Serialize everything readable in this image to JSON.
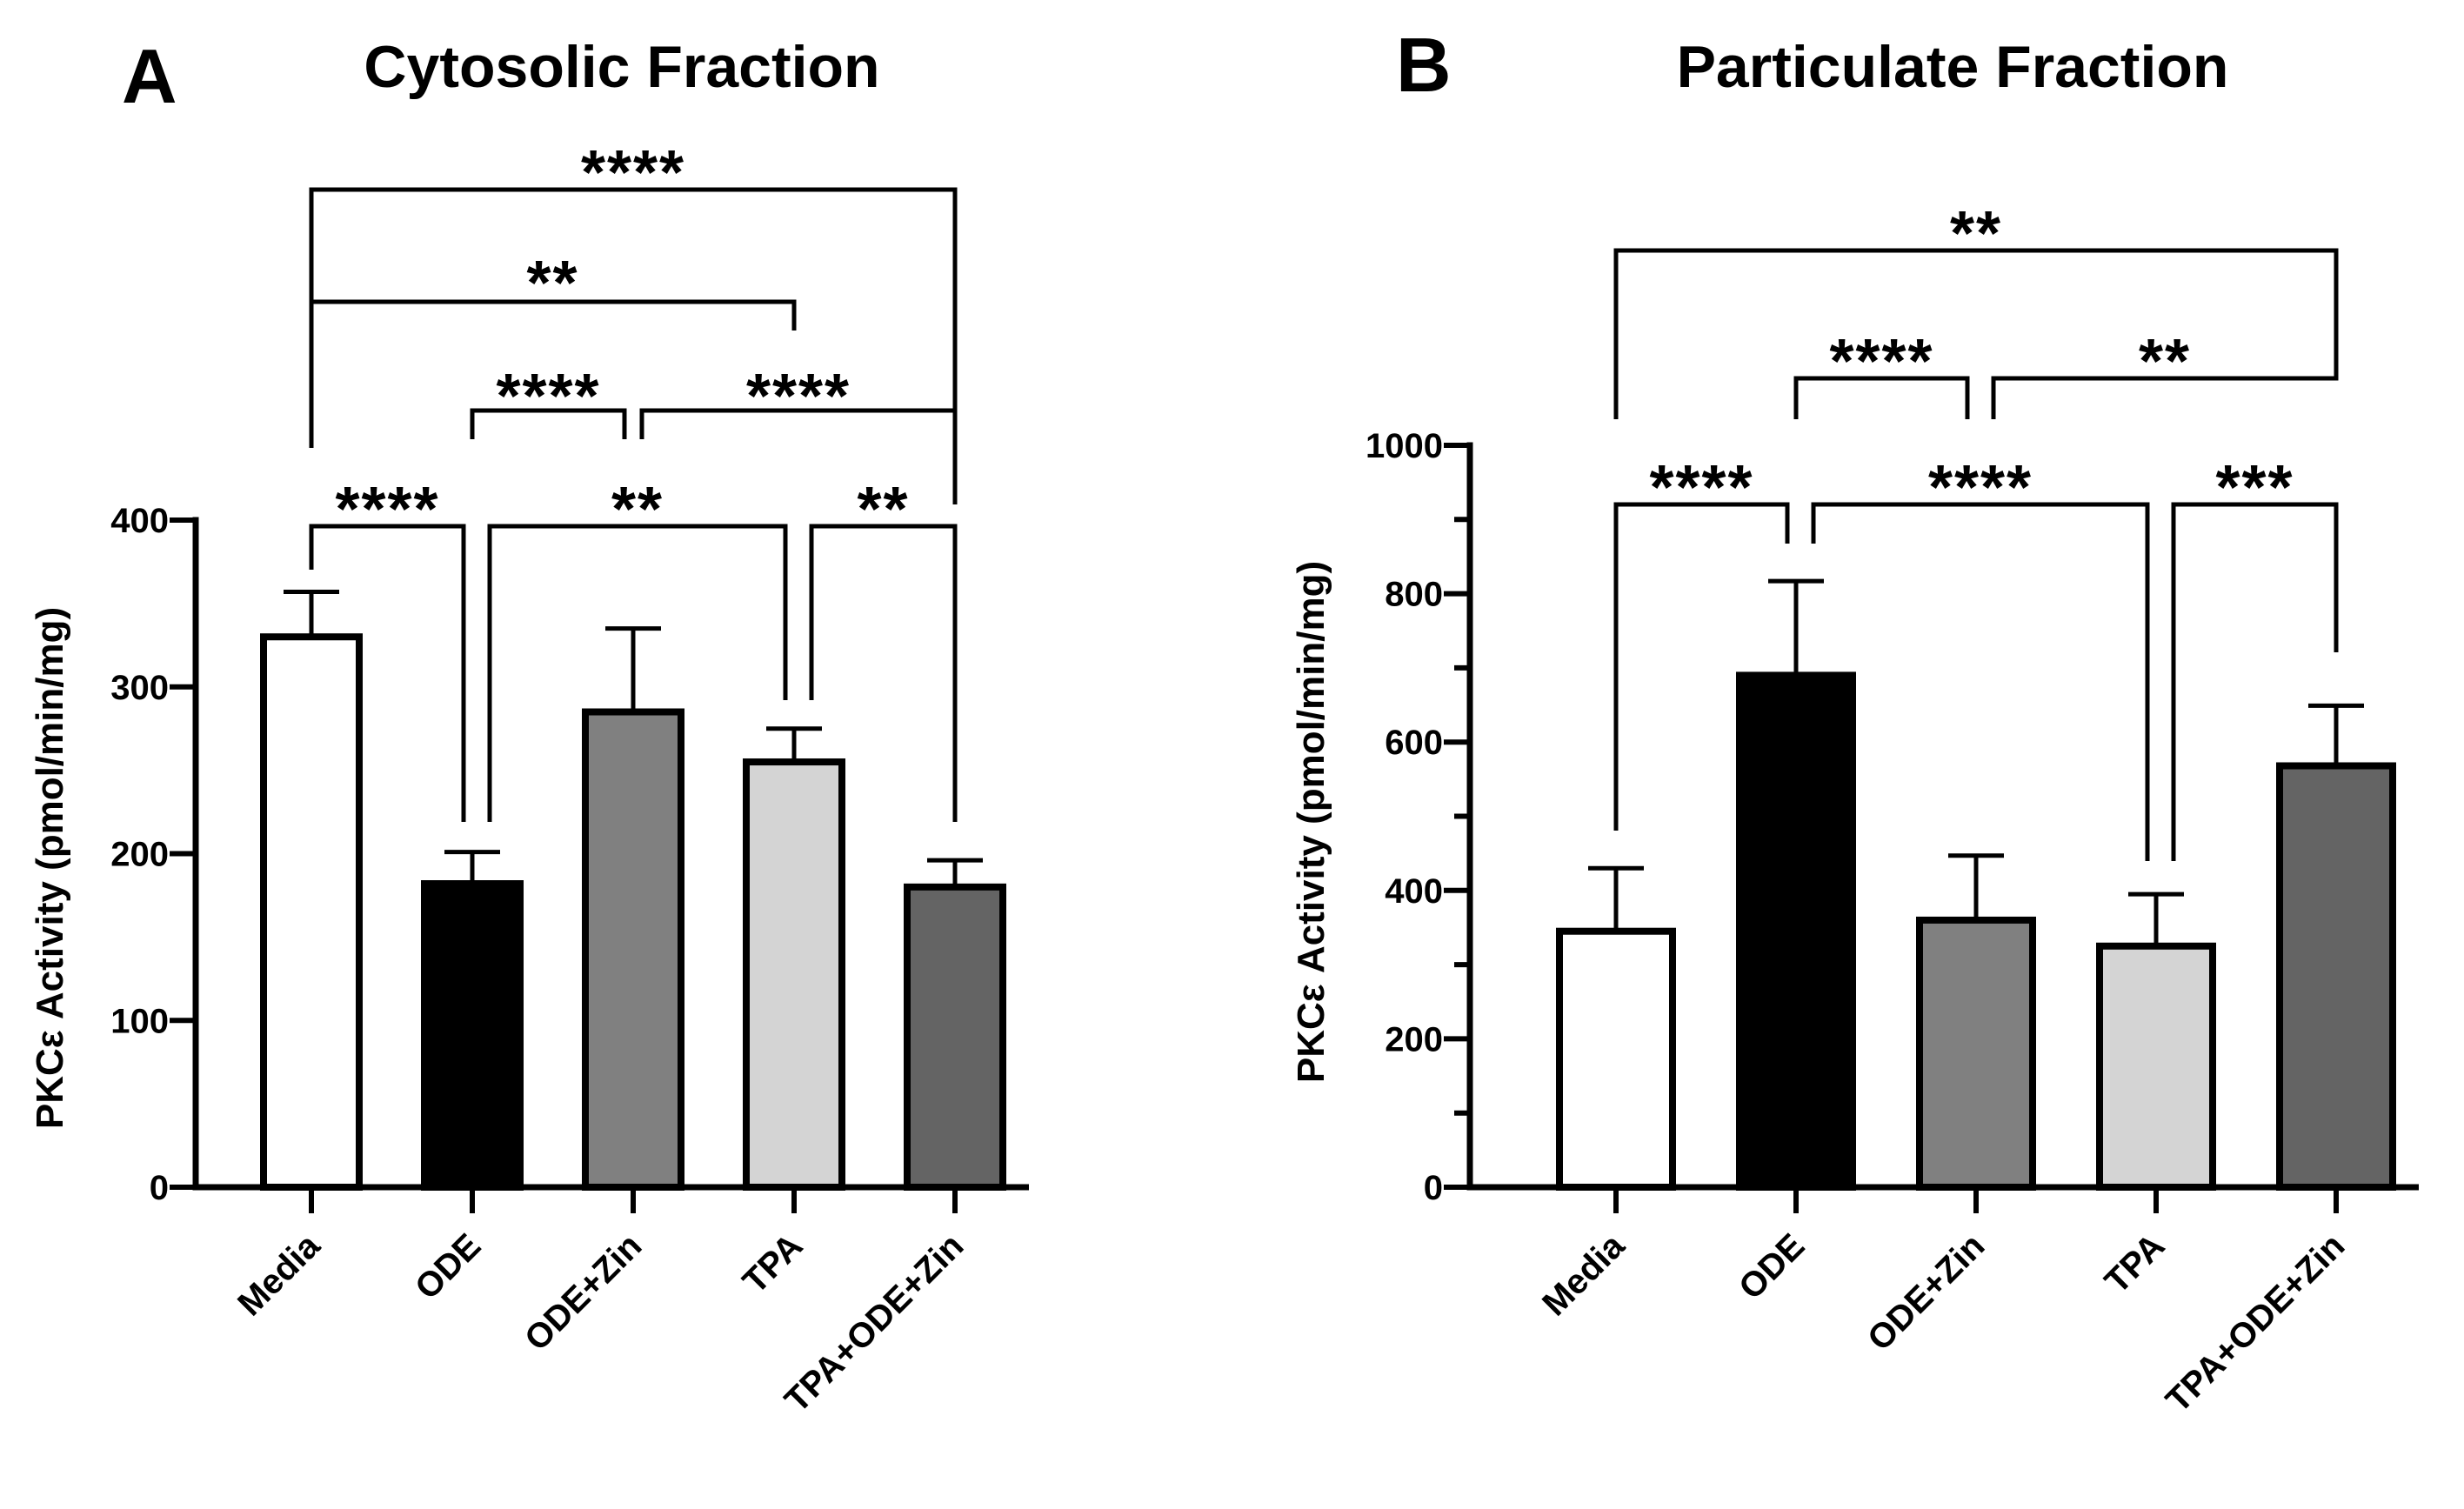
{
  "chart_data": [
    {
      "panel_label": "A",
      "title": "Cytosolic Fraction",
      "type": "bar",
      "ylabel": "PKCε Activity (pmol/min/mg)",
      "xlabel": "",
      "ylim": [
        0,
        400
      ],
      "yticks": [
        0,
        100,
        200,
        300,
        400
      ],
      "categories": [
        "Media",
        "ODE",
        "ODE+Zin",
        "TPA",
        "TPA+ODE+Zin"
      ],
      "values": [
        330,
        182,
        285,
        255,
        180
      ],
      "errors": [
        27,
        19,
        50,
        20,
        16
      ],
      "bar_colors": [
        "#ffffff",
        "#000000",
        "#808080",
        "#d4d4d4",
        "#646464"
      ],
      "significance": [
        {
          "from": 0,
          "to": 4,
          "label": "****"
        },
        {
          "from": 0,
          "to": 3,
          "label": "**"
        },
        {
          "from": 1,
          "to": 2,
          "label": "****"
        },
        {
          "from": 2,
          "to": 4,
          "label": "****"
        },
        {
          "from": 0,
          "to": 1,
          "label": "****"
        },
        {
          "from": 1,
          "to": 3,
          "label": "**"
        },
        {
          "from": 3,
          "to": 4,
          "label": "**"
        }
      ]
    },
    {
      "panel_label": "B",
      "title": "Particulate Fraction",
      "type": "bar",
      "ylabel": "PKCε Activity (pmol/min/mg)",
      "xlabel": "",
      "ylim": [
        0,
        1000
      ],
      "yticks": [
        0,
        200,
        400,
        600,
        800,
        1000
      ],
      "categories": [
        "Media",
        "ODE",
        "ODE+Zin",
        "TPA",
        "TPA+ODE+Zin"
      ],
      "values": [
        345,
        690,
        360,
        325,
        568
      ],
      "errors": [
        85,
        127,
        87,
        70,
        81
      ],
      "bar_colors": [
        "#ffffff",
        "#000000",
        "#808080",
        "#d4d4d4",
        "#646464"
      ],
      "significance": [
        {
          "from": 0,
          "to": 4,
          "label": "**"
        },
        {
          "from": 1,
          "to": 2,
          "label": "****"
        },
        {
          "from": 2,
          "to": 4,
          "label": "**"
        },
        {
          "from": 0,
          "to": 1,
          "label": "****"
        },
        {
          "from": 1,
          "to": 3,
          "label": "****"
        },
        {
          "from": 3,
          "to": 4,
          "label": "***"
        }
      ]
    }
  ]
}
